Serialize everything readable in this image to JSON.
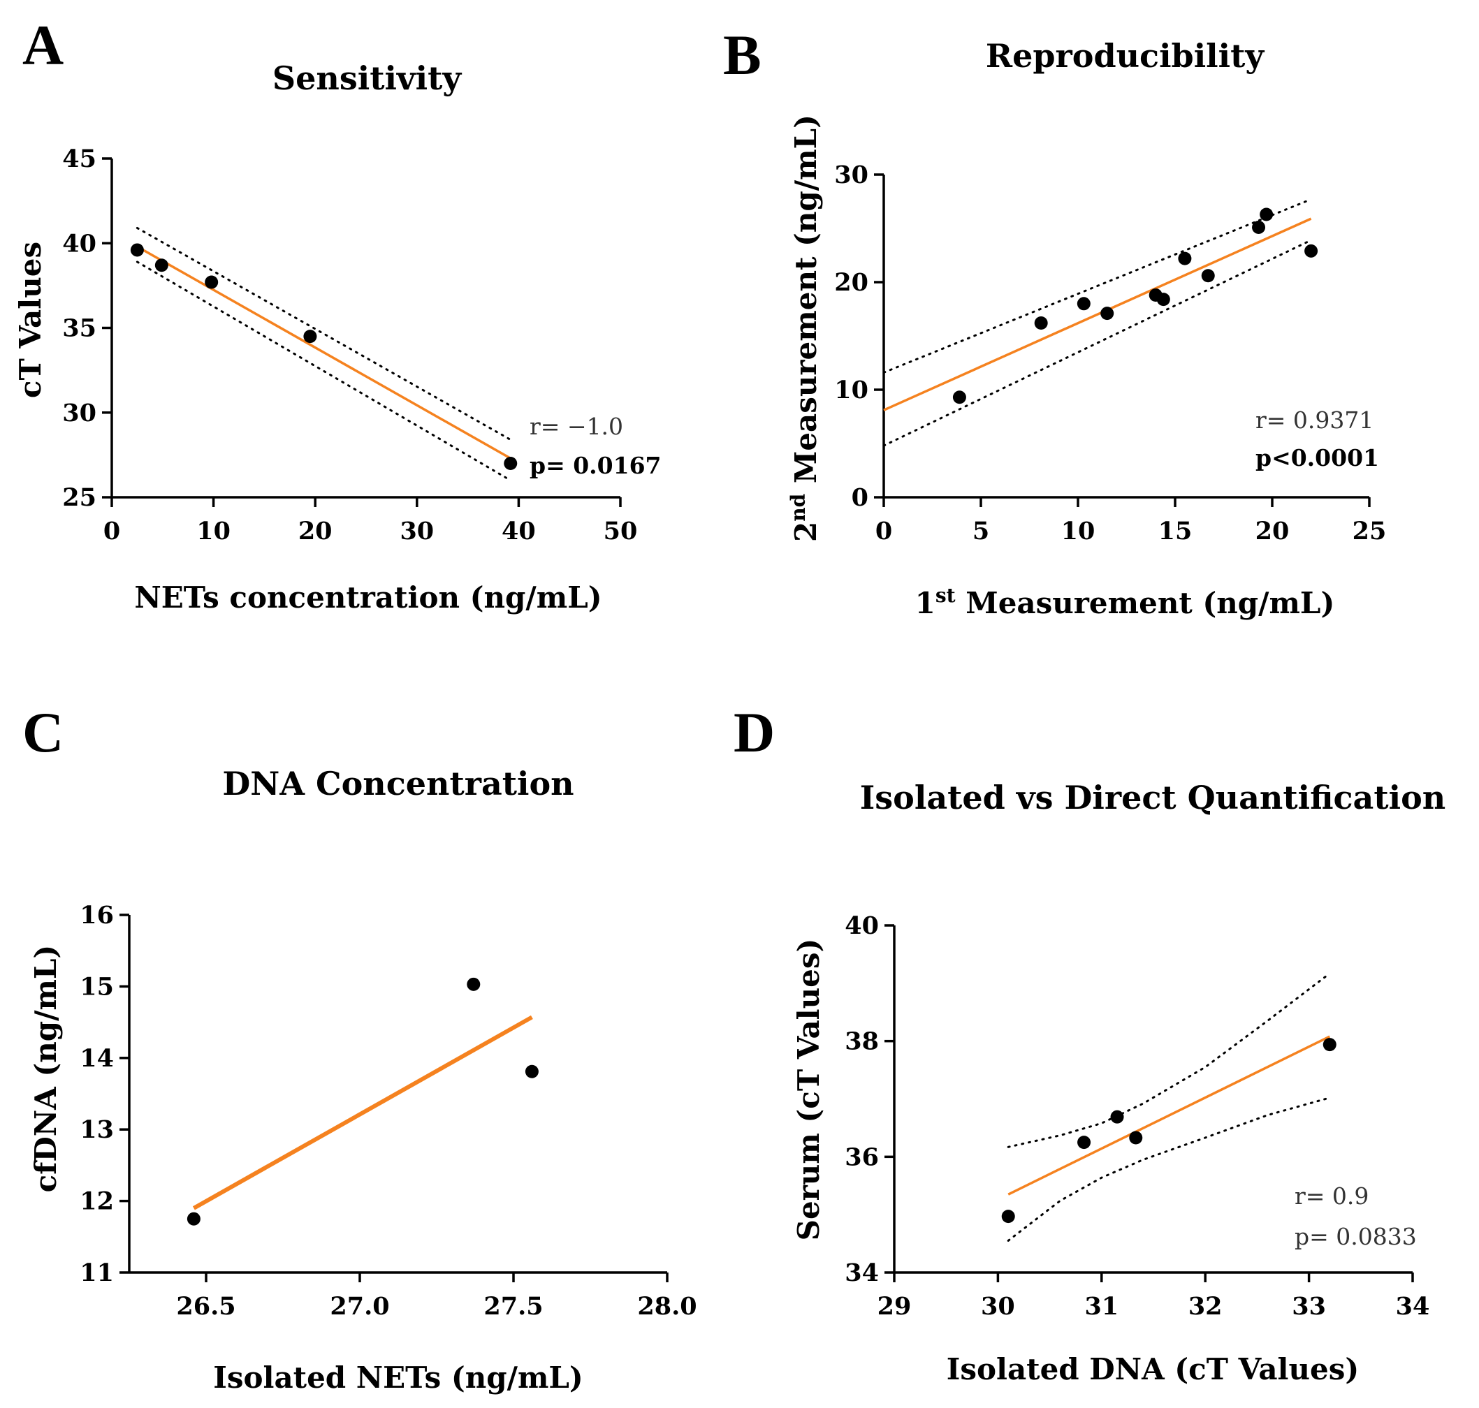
{
  "figure": {
    "colors": {
      "fit": "#f5821f",
      "points": "#000000",
      "axis": "#000000"
    }
  },
  "chart_data": [
    {
      "id": "A",
      "type": "scatter",
      "panel_label": "A",
      "title": "Sensitivity",
      "xlabel": "NETs concentration (ng/mL)",
      "ylabel": "cT Values",
      "xlim": [
        0,
        50
      ],
      "ylim": [
        25,
        45
      ],
      "xticks": [
        0,
        10,
        20,
        30,
        40,
        50
      ],
      "yticks": [
        25,
        30,
        35,
        40,
        45
      ],
      "xtick_labels": [
        "0",
        "10",
        "20",
        "30",
        "40",
        "50"
      ],
      "ytick_labels": [
        "25",
        "30",
        "35",
        "40",
        "45"
      ],
      "points": [
        [
          2.5,
          39.6
        ],
        [
          4.9,
          38.7
        ],
        [
          9.8,
          37.7
        ],
        [
          19.5,
          34.5
        ],
        [
          39.2,
          27.0
        ]
      ],
      "fit": {
        "x": [
          2.5,
          39.2
        ],
        "y": [
          39.8,
          27.3
        ]
      },
      "ci": {
        "upper": [
          [
            2.5,
            40.9
          ],
          [
            39.2,
            28.4
          ]
        ],
        "lower": [
          [
            2.5,
            38.9
          ],
          [
            39.2,
            26.0
          ]
        ]
      },
      "stats": {
        "r": "r= −1.0",
        "p": "p= 0.0167",
        "p_bold": true
      }
    },
    {
      "id": "B",
      "type": "scatter",
      "panel_label": "B",
      "title": "Reproducibility",
      "xlabel_pre": "1",
      "xlabel_sup": "st",
      "xlabel_post": " Measurement (ng/mL)",
      "ylabel_pre": "2",
      "ylabel_sup": "nd",
      "ylabel_post": " Measurement (ng/mL)",
      "xlim": [
        0,
        25
      ],
      "ylim": [
        0,
        30
      ],
      "xticks": [
        0,
        5,
        10,
        15,
        20,
        25
      ],
      "yticks": [
        0,
        10,
        20,
        30
      ],
      "xtick_labels": [
        "0",
        "5",
        "10",
        "15",
        "20",
        "25"
      ],
      "ytick_labels": [
        "0",
        "10",
        "20",
        "30"
      ],
      "points": [
        [
          3.9,
          9.3
        ],
        [
          8.1,
          16.2
        ],
        [
          10.3,
          18.0
        ],
        [
          11.5,
          17.1
        ],
        [
          14.0,
          18.8
        ],
        [
          14.4,
          18.4
        ],
        [
          15.5,
          22.2
        ],
        [
          16.7,
          20.6
        ],
        [
          19.3,
          25.1
        ],
        [
          19.7,
          26.3
        ],
        [
          22.0,
          22.9
        ]
      ],
      "fit": {
        "x": [
          0,
          22.0
        ],
        "y": [
          8.1,
          25.9
        ]
      },
      "ci": {
        "upper": [
          [
            0,
            11.6
          ],
          [
            22.0,
            27.7
          ]
        ],
        "lower": [
          [
            0,
            4.8
          ],
          [
            22.0,
            23.9
          ]
        ]
      },
      "stats": {
        "r": "r= 0.9371",
        "p": "p<0.0001",
        "p_bold": true
      }
    },
    {
      "id": "C",
      "type": "scatter",
      "panel_label": "C",
      "title": "DNA Concentration",
      "xlabel": "Isolated NETs (ng/mL)",
      "ylabel": "cfDNA (ng/mL)",
      "xlim": [
        26.25,
        28.0
      ],
      "ylim": [
        11,
        16
      ],
      "xticks": [
        26.5,
        27.0,
        27.5,
        28.0
      ],
      "yticks": [
        11,
        12,
        13,
        14,
        15,
        16
      ],
      "xtick_labels": [
        "26.5",
        "27.0",
        "27.5",
        "28.0"
      ],
      "ytick_labels": [
        "11",
        "12",
        "13",
        "14",
        "15",
        "16"
      ],
      "points": [
        [
          26.46,
          11.75
        ],
        [
          27.37,
          15.03
        ],
        [
          27.56,
          13.81
        ]
      ],
      "fit": {
        "x": [
          26.46,
          27.56
        ],
        "y": [
          11.9,
          14.57
        ]
      },
      "stats": null
    },
    {
      "id": "D",
      "type": "scatter",
      "panel_label": "D",
      "title": "Isolated vs Direct Quantification",
      "xlabel": "Isolated DNA (cT Values)",
      "ylabel": "Serum (cT Values)",
      "xlim": [
        29,
        34
      ],
      "ylim": [
        34,
        40
      ],
      "xticks": [
        29,
        30,
        31,
        32,
        33,
        34
      ],
      "yticks": [
        34,
        36,
        38,
        40
      ],
      "xtick_labels": [
        "29",
        "30",
        "31",
        "32",
        "33",
        "34"
      ],
      "ytick_labels": [
        "34",
        "36",
        "38",
        "40"
      ],
      "points": [
        [
          30.1,
          34.97
        ],
        [
          30.83,
          36.25
        ],
        [
          31.15,
          36.69
        ],
        [
          31.33,
          36.33
        ],
        [
          33.2,
          37.94
        ]
      ],
      "fit": {
        "x": [
          30.1,
          33.2
        ],
        "y": [
          35.35,
          38.08
        ]
      },
      "ci": {
        "upper": [
          [
            30.1,
            36.17
          ],
          [
            30.6,
            36.37
          ],
          [
            31.0,
            36.58
          ],
          [
            31.4,
            36.92
          ],
          [
            32.0,
            37.55
          ],
          [
            32.6,
            38.35
          ],
          [
            33.2,
            39.17
          ]
        ],
        "lower": [
          [
            30.1,
            34.55
          ],
          [
            30.6,
            35.24
          ],
          [
            31.0,
            35.64
          ],
          [
            31.4,
            35.95
          ],
          [
            32.0,
            36.33
          ],
          [
            32.6,
            36.72
          ],
          [
            33.2,
            37.02
          ]
        ]
      },
      "stats": {
        "r": "r= 0.9",
        "p": "p= 0.0833",
        "p_bold": false
      }
    }
  ]
}
